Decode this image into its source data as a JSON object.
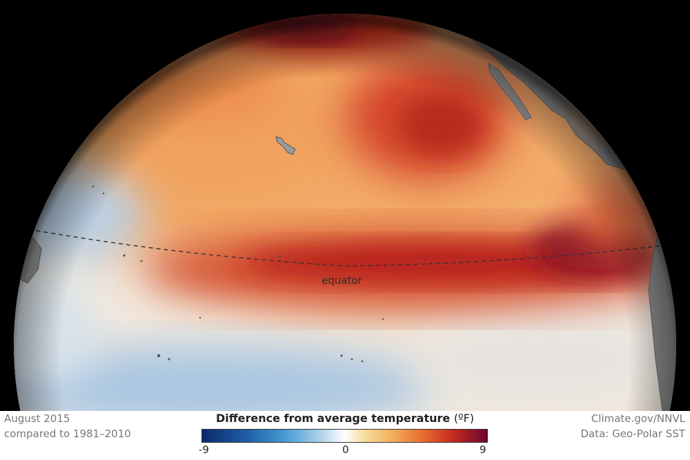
{
  "map": {
    "equator_label": "equator",
    "colors": {
      "space": "#000000",
      "land": "#8a8a8a",
      "cool": "#8fb8dc",
      "neutral": "#eef1f4",
      "warm": "#f2a457",
      "hot": "#cc3a1f",
      "hottest": "#7a0a24"
    }
  },
  "footer": {
    "date": "August 2015",
    "comparison": "compared to 1981–2010",
    "credit": "Climate.gov/NNVL",
    "data_source": "Data: Geo-Polar SST"
  },
  "legend": {
    "title": "Difference from average temperature",
    "unit": "(ºF)",
    "min_label": "-9",
    "mid_label": "0",
    "max_label": "9"
  }
}
